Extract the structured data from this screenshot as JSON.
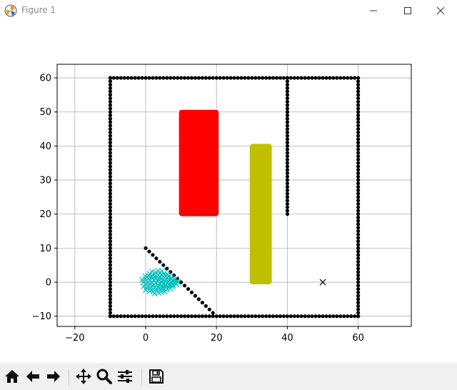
{
  "window": {
    "title": "Figure 1",
    "icon": "matplotlib-icon",
    "controls": [
      "minimize-icon",
      "maximize-icon",
      "close-icon"
    ]
  },
  "toolbar": {
    "tools": [
      {
        "name": "home",
        "icon": "home-icon"
      },
      {
        "name": "back",
        "icon": "arrow-left-icon"
      },
      {
        "name": "forward",
        "icon": "arrow-right-icon"
      },
      {
        "name": "pan",
        "icon": "move-icon"
      },
      {
        "name": "zoom",
        "icon": "magnifier-icon"
      },
      {
        "name": "configure-subplots",
        "icon": "sliders-icon"
      },
      {
        "name": "save",
        "icon": "floppy-disk-icon"
      }
    ]
  },
  "chart_data": {
    "type": "scatter",
    "xlim": [
      -25,
      75
    ],
    "ylim": [
      -13,
      64
    ],
    "xticks": [
      -20,
      0,
      20,
      40,
      60
    ],
    "yticks": [
      -10,
      0,
      10,
      20,
      30,
      40,
      50,
      60
    ],
    "grid": true,
    "colors": {
      "boundary": "#000000",
      "diagonal": "#000000",
      "obstacle_red": "#ff0000",
      "obstacle_olive": "#bfbf00",
      "start_markers": "#00bfbf",
      "goal_marker": "#000000"
    },
    "series": [
      {
        "kind": "dots",
        "desc": "outer boundary",
        "segments": [
          {
            "from": [
              -10,
              60
            ],
            "to": [
              60,
              60
            ],
            "step": 1
          },
          {
            "from": [
              -10,
              -10
            ],
            "to": [
              60,
              -10
            ],
            "step": 1
          },
          {
            "from": [
              -10,
              -10
            ],
            "to": [
              -10,
              60
            ],
            "step": 1
          },
          {
            "from": [
              60,
              -10
            ],
            "to": [
              60,
              59
            ],
            "step": 1
          },
          {
            "from": [
              40,
              20
            ],
            "to": [
              40,
              60
            ],
            "step": 1
          }
        ]
      },
      {
        "kind": "dots",
        "desc": "diagonal wall",
        "segments": [
          {
            "from": [
              0,
              10
            ],
            "to": [
              19,
              -9
            ],
            "step": 1
          }
        ]
      },
      {
        "kind": "filled-rect",
        "desc": "red obstacle",
        "x": [
          10,
          20
        ],
        "y": [
          20,
          50
        ]
      },
      {
        "kind": "filled-rect",
        "desc": "olive obstacle",
        "x": [
          30,
          35
        ],
        "y": [
          0,
          40
        ]
      },
      {
        "kind": "x-cloud",
        "desc": "start markers",
        "center": [
          4,
          0
        ],
        "extent": [
          [
            0,
            10
          ],
          [
            -4,
            4
          ]
        ]
      },
      {
        "kind": "x-marker",
        "desc": "goal",
        "point": [
          50,
          0
        ]
      }
    ]
  }
}
